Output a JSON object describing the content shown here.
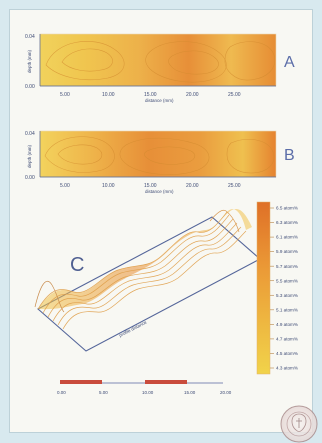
{
  "chart_data": [
    {
      "type": "heatmap",
      "panel": "A",
      "title": "",
      "xlabel": "distance (mm)",
      "ylabel": "depth (mm)",
      "xlim": [
        0,
        30
      ],
      "ylim": [
        0,
        0.04
      ],
      "x_ticks": [
        "5.00",
        "10.00",
        "15.00",
        "20.00",
        "25.00"
      ],
      "y_ticks": [
        "0.00",
        "0.04"
      ],
      "grid": false
    },
    {
      "type": "heatmap",
      "panel": "B",
      "title": "",
      "xlabel": "distance (mm)",
      "ylabel": "depth (mm)",
      "xlim": [
        0,
        30
      ],
      "ylim": [
        0,
        0.04
      ],
      "x_ticks": [
        "5.00",
        "10.00",
        "15.00",
        "20.00",
        "25.00"
      ],
      "y_ticks": [
        "0.00",
        "0.04"
      ],
      "grid": false
    },
    {
      "type": "area",
      "panel": "C",
      "title": "",
      "xlabel": "profile distance",
      "ylabel": "",
      "legend": {
        "values": [
          "6.5",
          "6.3",
          "6.1",
          "5.9",
          "5.7",
          "5.5",
          "5.3",
          "5.1",
          "4.9",
          "4.7",
          "4.5",
          "4.3"
        ],
        "unit": "atom%",
        "placement": "right"
      }
    },
    {
      "type": "bar",
      "panel": "scale",
      "title": "",
      "xlabel": "",
      "ylabel": "",
      "ticks": [
        "0.00",
        "5.00",
        "10.00",
        "15.00",
        "20.00"
      ],
      "segments": [
        [
          0,
          5
        ],
        [
          10,
          15
        ]
      ],
      "grid": false
    }
  ],
  "panel_labels": {
    "a": "A",
    "b": "B",
    "c": "C"
  },
  "legend_unit": "atom%",
  "colors": {
    "page_bg": "#d8e9ef",
    "paper": "#f8f8f3",
    "heat_low": "#f0cf59",
    "heat_mid": "#efb44a",
    "heat_high": "#e07d2a",
    "legend_top": "#df7027",
    "legend_bottom": "#f1d34a",
    "axis": "#50628f",
    "label": "#4e62a7",
    "scale_bar": "#c94c3c"
  }
}
